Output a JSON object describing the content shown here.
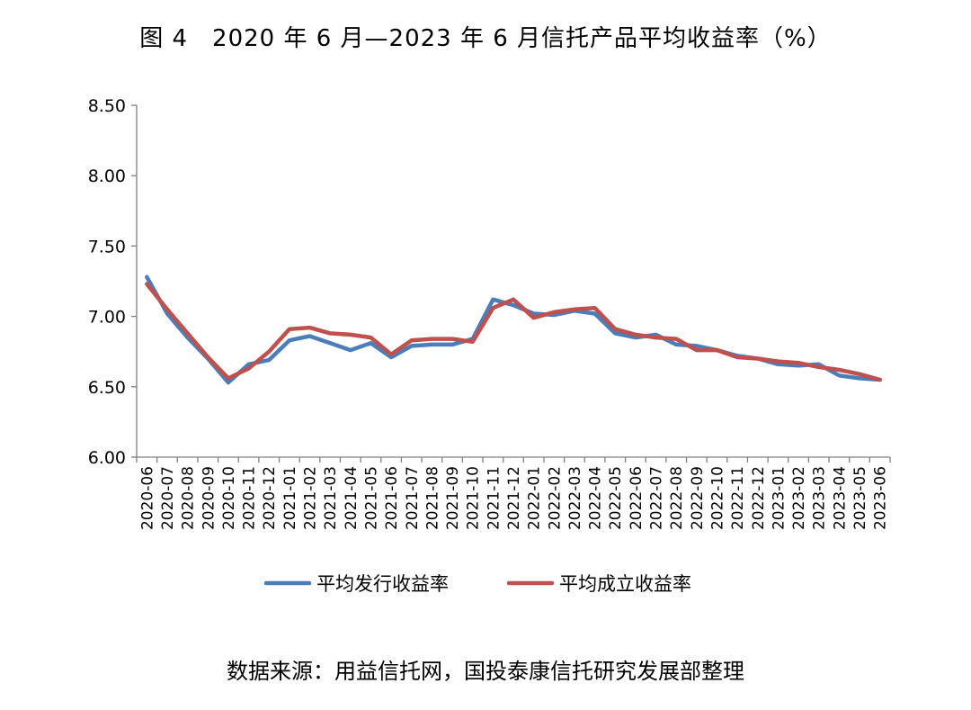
{
  "title": "图 4　2020 年 6 月—2023 年 6 月信托产品平均收益率（%）",
  "source": "数据来源：用益信托网，国投泰康信托研究发展部整理",
  "chart_data": {
    "type": "line",
    "ylim": [
      6.0,
      8.5
    ],
    "yticks": [
      "6.00",
      "6.50",
      "7.00",
      "7.50",
      "8.00",
      "8.50"
    ],
    "legend_position": "bottom",
    "x": [
      "2020-06",
      "2020-07",
      "2020-08",
      "2020-09",
      "2020-10",
      "2020-11",
      "2020-12",
      "2021-01",
      "2021-02",
      "2021-03",
      "2021-04",
      "2021-05",
      "2021-06",
      "2021-07",
      "2021-08",
      "2021-09",
      "2021-10",
      "2021-11",
      "2021-12",
      "2022-01",
      "2022-02",
      "2022-03",
      "2022-04",
      "2022-05",
      "2022-06",
      "2022-07",
      "2022-08",
      "2022-09",
      "2022-10",
      "2022-11",
      "2022-12",
      "2023-01",
      "2023-02",
      "2023-03",
      "2023-04",
      "2023-05",
      "2023-06"
    ],
    "series": [
      {
        "name": "平均发行收益率",
        "color": "#4a7ebb",
        "values": [
          7.28,
          7.02,
          6.85,
          6.7,
          6.53,
          6.66,
          6.69,
          6.83,
          6.86,
          6.81,
          6.76,
          6.81,
          6.71,
          6.79,
          6.8,
          6.8,
          6.84,
          7.12,
          7.08,
          7.02,
          7.01,
          7.04,
          7.02,
          6.88,
          6.85,
          6.87,
          6.8,
          6.79,
          6.76,
          6.72,
          6.7,
          6.66,
          6.65,
          6.66,
          6.58,
          6.56,
          6.55
        ]
      },
      {
        "name": "平均成立收益率",
        "color": "#c0504d",
        "values": [
          7.23,
          7.05,
          6.88,
          6.71,
          6.56,
          6.63,
          6.75,
          6.91,
          6.92,
          6.88,
          6.87,
          6.85,
          6.73,
          6.83,
          6.84,
          6.84,
          6.82,
          7.06,
          7.12,
          6.99,
          7.03,
          7.05,
          7.06,
          6.91,
          6.87,
          6.85,
          6.84,
          6.76,
          6.76,
          6.71,
          6.7,
          6.68,
          6.67,
          6.64,
          6.62,
          6.59,
          6.55
        ]
      }
    ]
  }
}
